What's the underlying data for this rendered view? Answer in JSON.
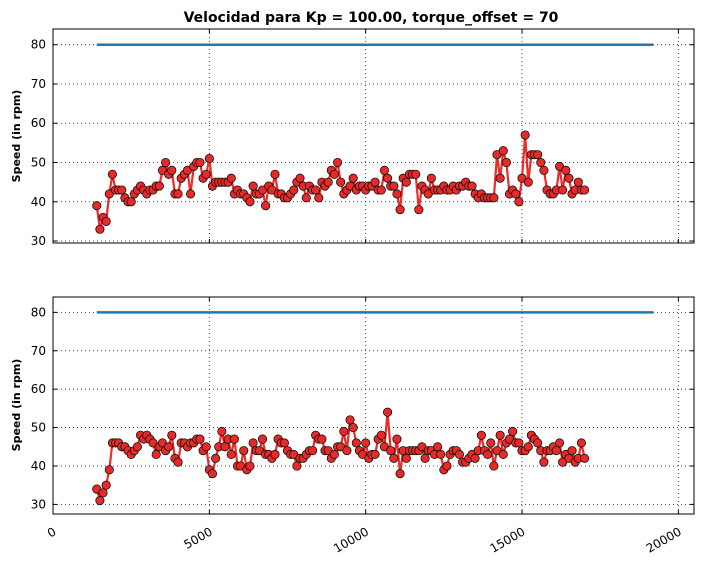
{
  "colors": {
    "target_line": "#1f77b4",
    "speed_line": "#ee2a2a",
    "marker_fill": "#e52a2a",
    "marker_edge": "#000000",
    "grid": "#000000",
    "background": "#ffffff"
  },
  "chart_data": [
    {
      "type": "line",
      "title": "Velocidad para Kp = 100.00, torque_offset = 70",
      "xlabel": "",
      "ylabel": "Speed (in rpm)",
      "xlim": [
        0,
        20500
      ],
      "ylim": [
        29.5,
        84
      ],
      "yticks": [
        30,
        40,
        50,
        60,
        70,
        80
      ],
      "xticks": [
        0,
        5000,
        10000,
        15000,
        20000
      ],
      "x_tick_labels_visible": false,
      "grid": true,
      "x_start": 1400,
      "x_step": 100,
      "series": [
        {
          "style": "line",
          "x": [
            1400,
            19200
          ],
          "values": [
            80,
            80
          ]
        },
        {
          "style": "line-markers",
          "values": [
            39,
            33,
            36,
            35,
            42,
            47,
            43,
            43,
            43,
            41,
            40,
            40,
            42,
            43,
            44,
            43,
            42,
            43,
            43,
            44,
            44,
            48,
            50,
            47,
            48,
            42,
            42,
            46,
            47,
            48,
            42,
            49,
            50,
            50,
            46,
            47,
            51,
            44,
            45,
            45,
            45,
            45,
            45,
            46,
            42,
            43,
            42,
            42,
            41,
            40,
            44,
            42,
            42,
            43,
            39,
            44,
            43,
            47,
            42,
            42,
            41,
            41,
            42,
            43,
            45,
            46,
            44,
            41,
            44,
            43,
            43,
            41,
            45,
            44,
            45,
            48,
            47,
            50,
            45,
            42,
            43,
            44,
            46,
            43,
            44,
            44,
            43,
            44,
            44,
            45,
            43,
            43,
            48,
            46,
            44,
            44,
            42,
            38,
            46,
            45,
            47,
            47,
            47,
            38,
            44,
            43,
            42,
            46,
            43,
            43,
            43,
            44,
            43,
            43,
            44,
            43,
            44,
            44,
            45,
            44,
            44,
            42,
            41,
            42,
            41,
            41,
            41,
            41,
            52,
            46,
            53,
            50,
            42,
            43,
            42,
            40,
            46,
            57,
            45,
            52,
            52,
            52,
            50,
            48,
            43,
            42,
            42,
            43,
            49,
            43,
            48,
            46,
            42,
            43,
            45,
            43,
            43
          ]
        }
      ]
    },
    {
      "type": "line",
      "title": "",
      "xlabel": "",
      "ylabel": "Speed (in rpm)",
      "xlim": [
        0,
        20500
      ],
      "ylim": [
        27.5,
        84
      ],
      "yticks": [
        30,
        40,
        50,
        60,
        70,
        80
      ],
      "xticks": [
        0,
        5000,
        10000,
        15000,
        20000
      ],
      "x_tick_labels": [
        "0",
        "5000",
        "10000",
        "15000",
        "20000"
      ],
      "x_tick_labels_visible": true,
      "grid": true,
      "x_start": 1400,
      "x_step": 100,
      "series": [
        {
          "style": "line",
          "x": [
            1400,
            19200
          ],
          "values": [
            80,
            80
          ]
        },
        {
          "style": "line-markers",
          "values": [
            34,
            31,
            33,
            35,
            39,
            46,
            46,
            46,
            45,
            45,
            44,
            43,
            44,
            45,
            48,
            47,
            48,
            47,
            46,
            43,
            45,
            46,
            44,
            45,
            48,
            42,
            41,
            46,
            46,
            45,
            46,
            46,
            47,
            47,
            44,
            45,
            39,
            38,
            42,
            45,
            49,
            45,
            47,
            43,
            47,
            40,
            40,
            44,
            39,
            40,
            46,
            44,
            44,
            47,
            43,
            43,
            42,
            43,
            47,
            46,
            46,
            44,
            43,
            43,
            40,
            42,
            42,
            43,
            44,
            44,
            48,
            47,
            47,
            44,
            44,
            42,
            43,
            45,
            45,
            49,
            44,
            52,
            50,
            46,
            44,
            43,
            46,
            42,
            43,
            43,
            47,
            48,
            45,
            54,
            44,
            42,
            47,
            38,
            44,
            42,
            44,
            44,
            44,
            44,
            45,
            42,
            44,
            44,
            43,
            45,
            43,
            39,
            40,
            43,
            44,
            44,
            43,
            41,
            41,
            42,
            43,
            42,
            44,
            48,
            44,
            43,
            46,
            40,
            44,
            48,
            43,
            46,
            47,
            49,
            46,
            46,
            44,
            44,
            45,
            48,
            47,
            46,
            44,
            41,
            44,
            44,
            45,
            44,
            46,
            41,
            43,
            42,
            44,
            41,
            42,
            46,
            42
          ]
        }
      ]
    }
  ]
}
